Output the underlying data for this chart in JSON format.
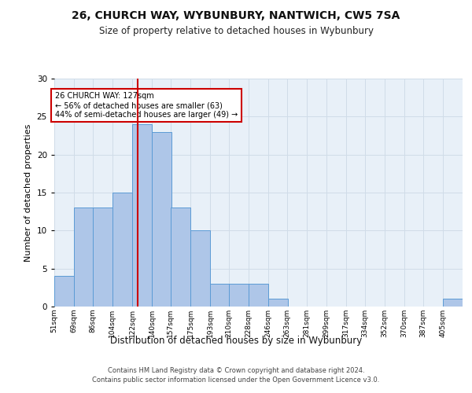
{
  "title": "26, CHURCH WAY, WYBUNBURY, NANTWICH, CW5 7SA",
  "subtitle": "Size of property relative to detached houses in Wybunbury",
  "xlabel": "Distribution of detached houses by size in Wybunbury",
  "ylabel": "Number of detached properties",
  "bar_labels": [
    "51sqm",
    "69sqm",
    "86sqm",
    "104sqm",
    "122sqm",
    "140sqm",
    "157sqm",
    "175sqm",
    "193sqm",
    "210sqm",
    "228sqm",
    "246sqm",
    "263sqm",
    "281sqm",
    "299sqm",
    "317sqm",
    "334sqm",
    "352sqm",
    "370sqm",
    "387sqm",
    "405sqm"
  ],
  "bar_values": [
    4,
    13,
    13,
    15,
    24,
    23,
    13,
    10,
    3,
    3,
    3,
    1,
    0,
    0,
    0,
    0,
    0,
    0,
    0,
    0,
    1
  ],
  "bar_color": "#aec6e8",
  "bar_edge_color": "#5b9bd5",
  "vline_x": 127,
  "vline_color": "#cc0000",
  "annotation_text": "26 CHURCH WAY: 127sqm\n← 56% of detached houses are smaller (63)\n44% of semi-detached houses are larger (49) →",
  "annotation_box_color": "#ffffff",
  "annotation_box_edge": "#cc0000",
  "ylim": [
    0,
    30
  ],
  "yticks": [
    0,
    5,
    10,
    15,
    20,
    25,
    30
  ],
  "grid_color": "#d0dce8",
  "background_color": "#e8f0f8",
  "footer_text": "Contains HM Land Registry data © Crown copyright and database right 2024.\nContains public sector information licensed under the Open Government Licence v3.0.",
  "bin_width": 18,
  "title_fontsize": 10,
  "subtitle_fontsize": 8.5,
  "ylabel_fontsize": 8,
  "xlabel_fontsize": 8.5,
  "footer_fontsize": 6,
  "annot_fontsize": 7
}
